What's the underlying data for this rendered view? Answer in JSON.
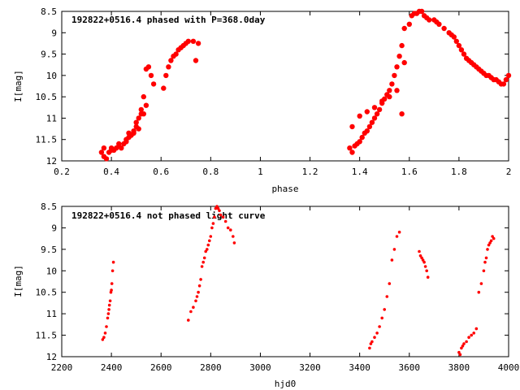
{
  "chart_data": [
    {
      "type": "scatter",
      "title": "192822+0516.4 phased with P=368.0day",
      "xlabel": "phase",
      "ylabel": "I[mag]",
      "xlim": [
        0.2,
        2.0
      ],
      "ylim": [
        12,
        8.5
      ],
      "y_inverted": true,
      "xticks": [
        0.2,
        0.4,
        0.6,
        0.8,
        1,
        1.2,
        1.4,
        1.6,
        1.8,
        2
      ],
      "xtick_labels": [
        "0.2",
        "0.4",
        "0.6",
        "0.8",
        "1",
        "1.2",
        "1.4",
        "1.6",
        "1.8",
        "2"
      ],
      "yticks": [
        8.5,
        9,
        9.5,
        10,
        10.5,
        11,
        11.5,
        12
      ],
      "ytick_labels": [
        "8.5",
        "9",
        "9.5",
        "10",
        "10.5",
        "11",
        "11.5",
        "12"
      ],
      "grid": false,
      "marker_color": "#ff0000",
      "marker": "filled-circle-large",
      "series": [
        {
          "x": [
            0.36,
            0.37,
            0.38,
            0.39,
            0.4,
            0.41,
            0.42,
            0.43,
            0.44,
            0.45,
            0.46,
            0.47,
            0.48,
            0.49,
            0.5,
            0.51,
            0.52,
            0.53,
            0.54,
            0.55,
            0.56,
            0.57,
            0.61,
            0.62,
            0.63,
            0.64,
            0.65,
            0.66,
            0.67,
            0.68,
            0.69,
            0.7,
            0.71,
            0.73,
            0.74,
            0.75,
            0.37,
            0.4,
            0.43,
            0.46,
            0.5,
            0.52,
            0.54,
            0.47,
            0.49,
            0.51,
            0.53,
            1.36,
            1.37,
            1.38,
            1.39,
            1.4,
            1.41,
            1.42,
            1.43,
            1.44,
            1.45,
            1.46,
            1.47,
            1.48,
            1.49,
            1.5,
            1.51,
            1.52,
            1.53,
            1.54,
            1.55,
            1.56,
            1.57,
            1.58,
            1.6,
            1.61,
            1.62,
            1.63,
            1.64,
            1.65,
            1.66,
            1.67,
            1.68,
            1.7,
            1.71,
            1.72,
            1.74,
            1.76,
            1.77,
            1.78,
            1.79,
            1.8,
            1.81,
            1.82,
            1.83,
            1.84,
            1.85,
            1.86,
            1.87,
            1.88,
            1.89,
            1.9,
            1.91,
            1.92,
            1.93,
            1.94,
            1.95,
            1.96,
            1.97,
            1.98,
            1.99,
            2.0,
            1.37,
            1.4,
            1.43,
            1.46,
            1.49,
            1.52,
            1.55,
            1.57,
            1.58
          ],
          "y": [
            11.8,
            11.9,
            11.95,
            11.8,
            11.7,
            11.75,
            11.7,
            11.65,
            11.7,
            11.6,
            11.55,
            11.45,
            11.4,
            11.35,
            11.2,
            11.0,
            10.8,
            10.5,
            9.85,
            9.8,
            10.0,
            10.2,
            10.3,
            10.0,
            9.8,
            9.65,
            9.55,
            9.5,
            9.4,
            9.35,
            9.3,
            9.25,
            9.2,
            9.2,
            9.65,
            9.25,
            11.7,
            11.75,
            11.6,
            11.5,
            11.1,
            10.9,
            10.7,
            11.35,
            11.3,
            11.25,
            10.9,
            11.7,
            11.8,
            11.65,
            11.6,
            11.55,
            11.45,
            11.35,
            11.3,
            11.2,
            11.1,
            11.0,
            10.9,
            10.8,
            10.65,
            10.55,
            10.45,
            10.35,
            10.2,
            10.0,
            9.8,
            9.55,
            9.3,
            8.9,
            8.8,
            8.6,
            8.55,
            8.55,
            8.5,
            8.5,
            8.6,
            8.65,
            8.7,
            8.7,
            8.75,
            8.8,
            8.9,
            9.0,
            9.05,
            9.1,
            9.2,
            9.3,
            9.4,
            9.5,
            9.6,
            9.65,
            9.7,
            9.75,
            9.8,
            9.85,
            9.9,
            9.95,
            10.0,
            10.0,
            10.05,
            10.1,
            10.1,
            10.15,
            10.2,
            10.2,
            10.1,
            10.0,
            11.2,
            10.95,
            10.85,
            10.75,
            10.6,
            10.5,
            10.35,
            10.9,
            9.7
          ]
        }
      ]
    },
    {
      "type": "scatter",
      "title": "192822+0516.4 not phased light curve",
      "xlabel": "hjd0",
      "ylabel": "I[mag]",
      "xlim": [
        2200,
        4000
      ],
      "ylim": [
        12,
        8.5
      ],
      "y_inverted": true,
      "xticks": [
        2200,
        2400,
        2600,
        2800,
        3000,
        3200,
        3400,
        3600,
        3800,
        4000
      ],
      "xtick_labels": [
        "2200",
        "2400",
        "2600",
        "2800",
        "3000",
        "3200",
        "3400",
        "3600",
        "3800",
        "4000"
      ],
      "yticks": [
        8.5,
        9,
        9.5,
        10,
        10.5,
        11,
        11.5,
        12
      ],
      "ytick_labels": [
        "8.5",
        "9",
        "9.5",
        "10",
        "10.5",
        "11",
        "11.5",
        "12"
      ],
      "grid": false,
      "marker_color": "#ff0000",
      "marker": "filled-circle-small",
      "series": [
        {
          "x": [
            2365,
            2370,
            2375,
            2380,
            2385,
            2388,
            2390,
            2392,
            2395,
            2398,
            2400,
            2402,
            2405,
            2408,
            2710,
            2720,
            2730,
            2740,
            2745,
            2750,
            2755,
            2760,
            2765,
            2770,
            2775,
            2780,
            2785,
            2790,
            2795,
            2800,
            2805,
            2810,
            2815,
            2820,
            2825,
            2830,
            2835,
            2840,
            2850,
            2860,
            2870,
            2880,
            2890,
            2895,
            3440,
            3445,
            3450,
            3460,
            3470,
            3480,
            3490,
            3500,
            3510,
            3520,
            3530,
            3540,
            3550,
            3560,
            3640,
            3645,
            3650,
            3655,
            3660,
            3665,
            3670,
            3675,
            3800,
            3805,
            3810,
            3815,
            3820,
            3830,
            3840,
            3850,
            3860,
            3870,
            3880,
            3890,
            3900,
            3905,
            3910,
            3915,
            3920,
            3925,
            3930,
            3935,
            3940
          ],
          "y": [
            11.6,
            11.55,
            11.45,
            11.3,
            11.1,
            11.0,
            10.9,
            10.8,
            10.7,
            10.5,
            10.45,
            10.3,
            10.0,
            9.8,
            11.15,
            10.95,
            10.85,
            10.7,
            10.6,
            10.5,
            10.35,
            10.2,
            9.9,
            9.8,
            9.7,
            9.55,
            9.5,
            9.4,
            9.3,
            9.2,
            9.0,
            8.9,
            8.75,
            8.55,
            8.5,
            8.55,
            8.6,
            8.7,
            8.75,
            8.85,
            9.0,
            9.05,
            9.2,
            9.35,
            11.8,
            11.7,
            11.65,
            11.55,
            11.45,
            11.3,
            11.1,
            10.9,
            10.6,
            10.3,
            9.75,
            9.5,
            9.2,
            9.1,
            9.55,
            9.65,
            9.7,
            9.75,
            9.8,
            9.9,
            10.0,
            10.15,
            11.9,
            11.95,
            11.8,
            11.75,
            11.7,
            11.65,
            11.55,
            11.5,
            11.45,
            11.35,
            10.5,
            10.3,
            10.0,
            9.8,
            9.7,
            9.5,
            9.4,
            9.35,
            9.3,
            9.2,
            9.25
          ]
        }
      ]
    }
  ]
}
